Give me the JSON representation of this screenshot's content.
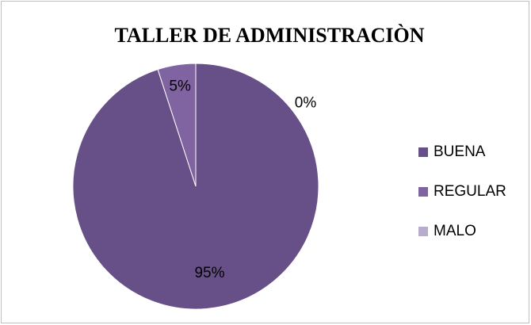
{
  "chart_data": {
    "type": "pie",
    "title": "TALLER DE ADMINISTRACIÒN",
    "categories": [
      "BUENA",
      "REGULAR",
      "MALO"
    ],
    "values": [
      95,
      5,
      0
    ],
    "value_labels": [
      "95%",
      "5%",
      "0%"
    ],
    "colors": [
      "#674f87",
      "#8064a2",
      "#b8abcc"
    ],
    "legend": "right"
  }
}
